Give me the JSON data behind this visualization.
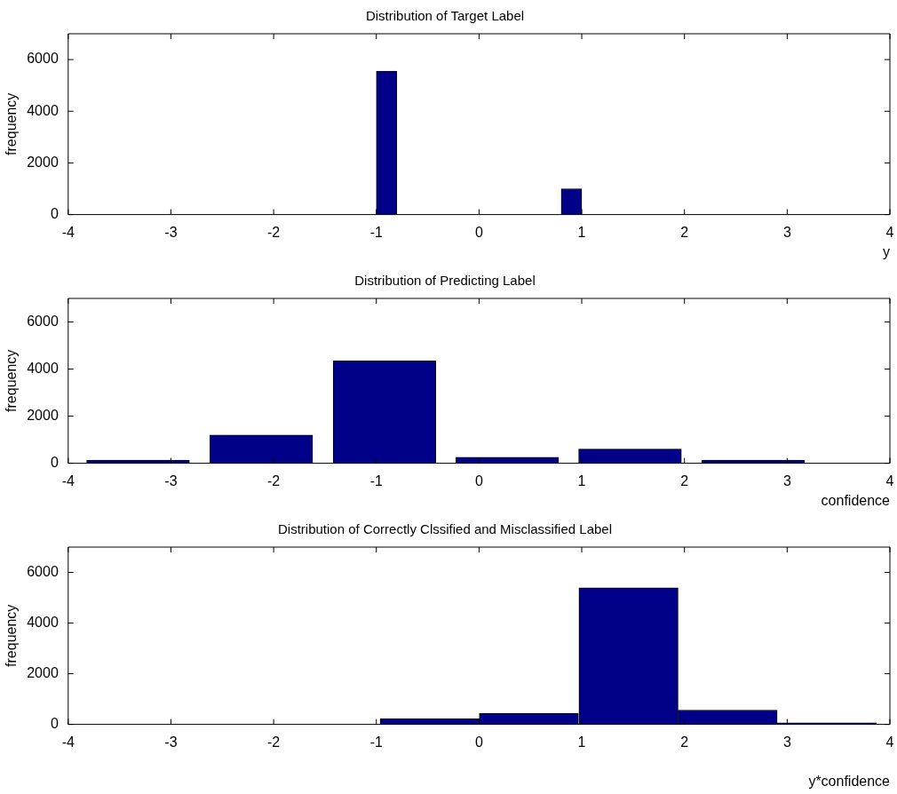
{
  "chart_data": [
    {
      "type": "histogram",
      "title": "Distribution of Target Label",
      "xlabel": "y",
      "ylabel": "frequency",
      "color": "#000088",
      "bins": [
        -1,
        -0.8,
        -0.6,
        -0.4,
        -0.2,
        0,
        0.2,
        0.4,
        0.6,
        0.8,
        1
      ],
      "values": [
        5550,
        0,
        0,
        0,
        0,
        0,
        0,
        0,
        0,
        1000
      ],
      "xlim": [
        -4,
        4
      ],
      "xticks": [
        -4,
        -3,
        -2,
        -1,
        0,
        1,
        2,
        3,
        4
      ],
      "ylim": [
        0,
        7000
      ],
      "yticks": [
        0,
        2000,
        4000,
        6000
      ]
    },
    {
      "type": "histogram",
      "title": "Distribution of Predicting Label",
      "xlabel": "confidence",
      "ylabel": "frequency",
      "color": "#000088",
      "bins": [
        -3.92,
        -2.72,
        -1.52,
        -0.32,
        0.87,
        2.07,
        3.27
      ],
      "values": [
        130,
        1200,
        4350,
        260,
        600,
        130
      ],
      "xlim": [
        -4,
        4
      ],
      "xticks": [
        -4,
        -3,
        -2,
        -1,
        0,
        1,
        2,
        3,
        4
      ],
      "ylim": [
        0,
        7000
      ],
      "yticks": [
        0,
        2000,
        4000,
        6000
      ]
    },
    {
      "type": "histogram",
      "title": "Distribution of Correctly Clssified and Misclassified Label",
      "xlabel": "y*confidence",
      "ylabel": "frequency",
      "color": "#000088",
      "bins": [
        -0.96,
        0.0,
        0.97,
        1.94,
        2.9,
        3.87
      ],
      "values": [
        220,
        435,
        5390,
        565,
        65
      ],
      "xlim": [
        -4,
        4
      ],
      "xticks": [
        -4,
        -3,
        -2,
        -1,
        0,
        1,
        2,
        3,
        4
      ],
      "ylim": [
        0,
        7000
      ],
      "yticks": [
        0,
        2000,
        4000,
        6000
      ]
    }
  ]
}
